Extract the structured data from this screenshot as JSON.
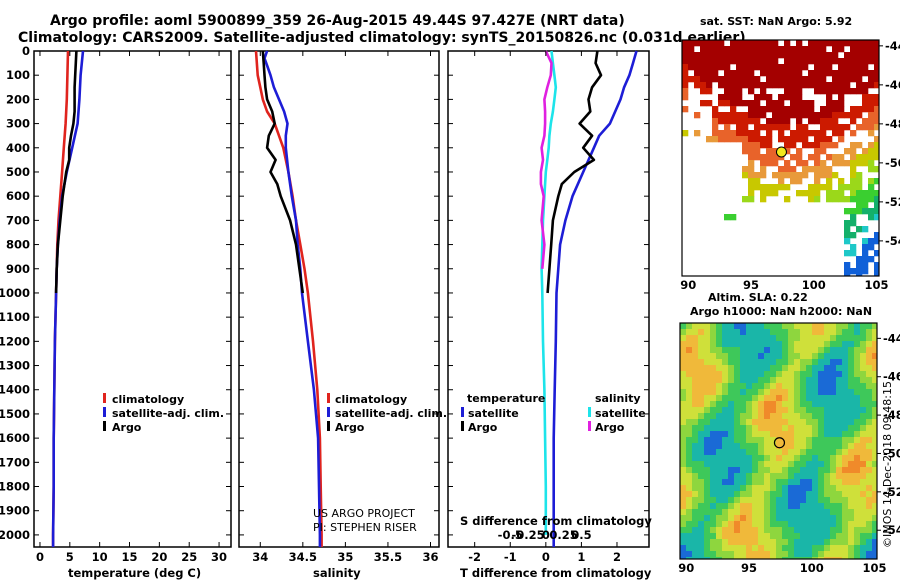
{
  "header": {
    "line1": "Argo profile: aoml 5900899_359 26-Aug-2015 49.44S 97.427E (NRT data)",
    "line2": "Climatology: CARS2009. Satellite-adjusted climatology: synTS_20150826.nc (0.031d earlier)"
  },
  "credit": {
    "line1": "US ARGO PROJECT",
    "line2": "PI: STEPHEN RISER"
  },
  "stamp": "©IMOS 14-Dec-2018 09:48:15",
  "colors": {
    "climatology": "#e0241e",
    "satellite": "#1d1dd6",
    "argo": "#000000",
    "sat_salinity": "#1de4ea",
    "argo_salinity": "#e020e0"
  },
  "chart_data": [
    {
      "type": "line",
      "id": "temperature",
      "xlabel": "temperature (deg C)",
      "ylabel": "",
      "xlim": [
        -1,
        32
      ],
      "ylim": [
        2050,
        0
      ],
      "xticks": [
        "0",
        "5",
        "10",
        "15",
        "20",
        "25",
        "30"
      ],
      "xtick_values": [
        0,
        5,
        10,
        15,
        20,
        25,
        30
      ],
      "yticks": [
        "0",
        "100",
        "200",
        "300",
        "400",
        "500",
        "600",
        "700",
        "800",
        "900",
        "1000",
        "1100",
        "1200",
        "1300",
        "1400",
        "1500",
        "1600",
        "1700",
        "1800",
        "1900",
        "2000"
      ],
      "ytick_values": [
        0,
        100,
        200,
        300,
        400,
        500,
        600,
        700,
        800,
        900,
        1000,
        1100,
        1200,
        1300,
        1400,
        1500,
        1600,
        1700,
        1800,
        1900,
        2000
      ],
      "legend": [
        "climatology",
        "satellite-adj. clim.",
        "Argo"
      ],
      "series": [
        {
          "name": "climatology",
          "color": "#e0241e",
          "depth": [
            0,
            100,
            200,
            300,
            400,
            500,
            600,
            700,
            800,
            900,
            1000,
            1200,
            1400,
            1600,
            1800,
            2000,
            2050
          ],
          "values": [
            4.7,
            4.6,
            4.5,
            4.3,
            4.0,
            3.7,
            3.4,
            3.1,
            2.9,
            2.8,
            2.7,
            2.5,
            2.4,
            2.3,
            2.3,
            2.2,
            2.2
          ]
        },
        {
          "name": "satellite-adj. clim.",
          "color": "#1d1dd6",
          "depth": [
            0,
            50,
            100,
            200,
            300,
            400,
            500,
            600,
            700,
            800,
            900,
            1000,
            1200,
            1400,
            1600,
            1800,
            2000,
            2050
          ],
          "values": [
            7.2,
            7.0,
            6.8,
            6.6,
            6.3,
            5.4,
            4.5,
            3.7,
            3.3,
            3.0,
            2.8,
            2.7,
            2.5,
            2.4,
            2.3,
            2.3,
            2.2,
            2.2
          ]
        },
        {
          "name": "Argo",
          "color": "#000000",
          "depth": [
            0,
            50,
            100,
            150,
            200,
            250,
            300,
            350,
            400,
            450,
            500,
            600,
            700,
            800,
            900,
            1000
          ],
          "values": [
            6.1,
            6.0,
            5.9,
            5.8,
            5.8,
            5.8,
            5.6,
            5.2,
            4.9,
            4.9,
            4.4,
            3.8,
            3.4,
            3.0,
            2.8,
            2.7
          ]
        }
      ]
    },
    {
      "type": "line",
      "id": "salinity",
      "xlabel": "salinity",
      "xlim": [
        33.75,
        36.1
      ],
      "ylim": [
        2050,
        0
      ],
      "xticks": [
        "34",
        "34.5",
        "35",
        "35.5",
        "36"
      ],
      "xtick_values": [
        34,
        34.5,
        35,
        35.5,
        36
      ],
      "legend": [
        "climatology",
        "satellite-adj. clim.",
        "Argo"
      ],
      "series": [
        {
          "name": "climatology",
          "color": "#e0241e",
          "depth": [
            0,
            100,
            150,
            200,
            250,
            300,
            400,
            500,
            600,
            700,
            800,
            900,
            1000,
            1200,
            1400,
            1600,
            1800,
            2000,
            2050
          ],
          "values": [
            33.95,
            33.97,
            34.0,
            34.03,
            34.08,
            34.17,
            34.27,
            34.33,
            34.38,
            34.42,
            34.47,
            34.52,
            34.56,
            34.62,
            34.67,
            34.7,
            34.71,
            34.72,
            34.72
          ]
        },
        {
          "name": "satellite-adj. clim.",
          "color": "#1d1dd6",
          "depth": [
            0,
            30,
            60,
            100,
            150,
            200,
            250,
            300,
            350,
            400,
            500,
            600,
            700,
            800,
            900,
            1000,
            1200,
            1400,
            1600,
            1800,
            2000,
            2050
          ],
          "values": [
            34.08,
            34.05,
            34.08,
            34.12,
            34.16,
            34.22,
            34.28,
            34.32,
            34.3,
            34.3,
            34.33,
            34.37,
            34.42,
            34.44,
            34.47,
            34.49,
            34.56,
            34.63,
            34.68,
            34.69,
            34.7,
            34.7
          ]
        },
        {
          "name": "Argo",
          "color": "#000000",
          "depth": [
            0,
            50,
            100,
            150,
            200,
            250,
            300,
            350,
            400,
            450,
            500,
            550,
            600,
            700,
            800,
            900,
            1000
          ],
          "values": [
            34.03,
            34.04,
            34.05,
            34.06,
            34.08,
            34.14,
            34.17,
            34.1,
            34.08,
            34.18,
            34.12,
            34.2,
            34.24,
            34.35,
            34.42,
            34.46,
            34.5
          ]
        }
      ]
    },
    {
      "type": "line",
      "id": "differences",
      "xlabel": "T difference from climatology",
      "xlabel2": "S difference from climatology",
      "xlim": [
        -2.75,
        2.9
      ],
      "ylim": [
        2050,
        0
      ],
      "xticks": [
        "-2",
        "-1",
        "0",
        "1",
        "2"
      ],
      "xtick_values": [
        -2,
        -1,
        0,
        1,
        2
      ],
      "sticks": [
        "-0.5",
        "-0.25",
        "0",
        "0.25",
        "0.5"
      ],
      "stick_values": [
        -0.5,
        -0.25,
        0,
        0.25,
        0.5
      ],
      "legend_temperature_title": "temperature",
      "legend_salinity_title": "salinity",
      "legend_satellite": "satellite",
      "legend_argo": "Argo",
      "series": [
        {
          "name": "T satellite",
          "color": "#1d1dd6",
          "depth": [
            0,
            50,
            100,
            150,
            200,
            250,
            300,
            350,
            400,
            500,
            600,
            700,
            800,
            900,
            1000,
            1200,
            1400,
            1600,
            1800,
            2000,
            2050
          ],
          "values": [
            2.55,
            2.45,
            2.35,
            2.2,
            2.1,
            1.95,
            1.8,
            1.5,
            1.35,
            1.05,
            0.75,
            0.55,
            0.4,
            0.35,
            0.3,
            0.28,
            0.25,
            0.22,
            0.22,
            0.22,
            0.22
          ]
        },
        {
          "name": "T Argo",
          "color": "#000000",
          "depth": [
            0,
            50,
            100,
            150,
            200,
            250,
            300,
            350,
            400,
            450,
            500,
            550,
            600,
            700,
            800,
            900,
            1000
          ],
          "values": [
            1.45,
            1.4,
            1.55,
            1.3,
            1.2,
            1.25,
            0.95,
            1.3,
            1.05,
            1.35,
            0.8,
            0.45,
            0.35,
            0.2,
            0.15,
            0.1,
            0.05
          ]
        },
        {
          "name": "S satellite",
          "color": "#1de4ea",
          "depth": [
            0,
            50,
            100,
            150,
            200,
            250,
            300,
            350,
            400,
            450,
            500,
            600,
            700,
            800,
            900,
            1000,
            1200,
            1400,
            1600,
            1800,
            2000
          ],
          "values": [
            0.08,
            0.1,
            0.12,
            0.14,
            0.12,
            0.1,
            0.07,
            0.05,
            0.04,
            0.02,
            0.0,
            -0.02,
            -0.04,
            -0.05,
            -0.06,
            -0.05,
            -0.04,
            -0.02,
            -0.01,
            0.0,
            0.0
          ]
        },
        {
          "name": "S Argo",
          "color": "#e020e0",
          "depth": [
            0,
            50,
            100,
            150,
            200,
            250,
            300,
            350,
            400,
            450,
            500,
            550,
            600,
            700,
            800,
            900
          ],
          "values": [
            0.0,
            0.08,
            0.07,
            0.02,
            -0.02,
            -0.01,
            -0.01,
            -0.02,
            -0.06,
            -0.04,
            -0.07,
            -0.07,
            -0.03,
            -0.06,
            -0.02,
            -0.05
          ]
        }
      ]
    },
    {
      "type": "heatmap",
      "id": "sst-map",
      "title": "sat. SST: NaN Argo: 5.92",
      "xticks": [
        "90",
        "95",
        "100",
        "105"
      ],
      "xtick_values": [
        90,
        95,
        100,
        105
      ],
      "yticks": [
        "-44",
        "-46",
        "-48",
        "-50",
        "-52",
        "-54"
      ],
      "ytick_values": [
        -44,
        -46,
        -48,
        -50,
        -52,
        -54
      ],
      "xlim": [
        89.5,
        105.2
      ],
      "ylim": [
        -55.8,
        -43.7
      ],
      "marker": {
        "lon": 97.427,
        "lat": -49.44
      }
    },
    {
      "type": "heatmap",
      "id": "sla-map",
      "title": "Altim. SLA: 0.22",
      "subtitle": "Argo h1000: NaN h2000: NaN",
      "xticks": [
        "90",
        "95",
        "100",
        "105"
      ],
      "xtick_values": [
        90,
        95,
        100,
        105
      ],
      "yticks": [
        "-44",
        "-46",
        "-48",
        "-50",
        "-52",
        "-54"
      ],
      "ytick_values": [
        -44,
        -46,
        -48,
        -50,
        -52,
        -54
      ],
      "xlim": [
        89.5,
        105.2
      ],
      "ylim": [
        -55.5,
        -43.2
      ],
      "marker": {
        "lon": 97.427,
        "lat": -49.44
      }
    }
  ]
}
